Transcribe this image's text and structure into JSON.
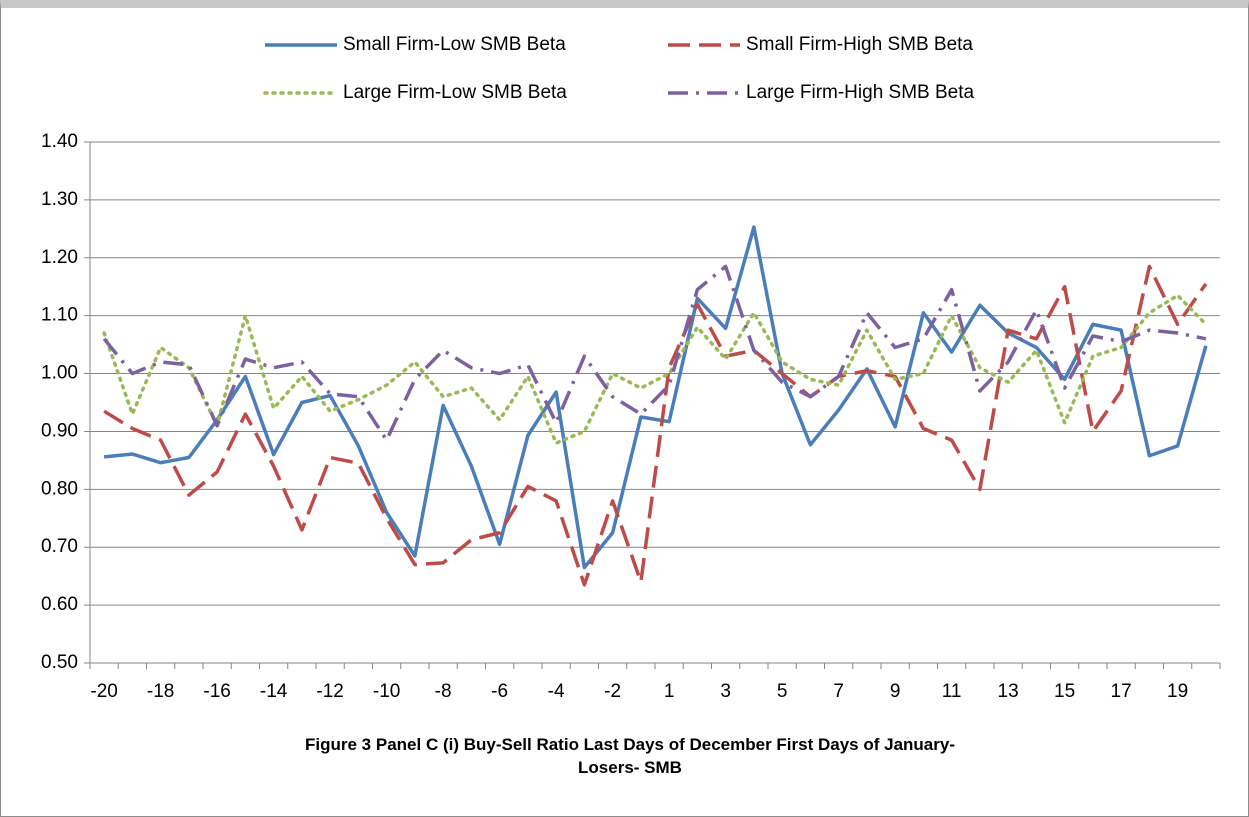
{
  "chart_data": {
    "type": "line",
    "x_label": "Figure 3 Panel C (i) Buy-Sell Ratio Last Days of December First Days of January-Losers- SMB",
    "categories": [
      "-20",
      null,
      "-18",
      null,
      "-16",
      null,
      "-14",
      null,
      "-12",
      null,
      "-10",
      null,
      "-8",
      null,
      "-6",
      null,
      "-4",
      null,
      "-2",
      null,
      "1",
      null,
      "3",
      null,
      "5",
      null,
      "7",
      null,
      "9",
      null,
      "11",
      null,
      "13",
      null,
      "15",
      null,
      "17",
      null,
      "19",
      null
    ],
    "ylim": [
      0.5,
      1.4
    ],
    "yticks": [
      {
        "value": 0.5,
        "label": "0.50"
      },
      {
        "value": 0.6,
        "label": "0.60"
      },
      {
        "value": 0.7,
        "label": "0.70"
      },
      {
        "value": 0.8,
        "label": "0.80"
      },
      {
        "value": 0.9,
        "label": "0.90"
      },
      {
        "value": 1.0,
        "label": "1.00"
      },
      {
        "value": 1.1,
        "label": "1.10"
      },
      {
        "value": 1.2,
        "label": "1.20"
      },
      {
        "value": 1.3,
        "label": "1.30"
      },
      {
        "value": 1.4,
        "label": "1.40"
      }
    ],
    "grid": true,
    "legend": "top",
    "series": [
      {
        "name": "Small Firm-Low SMB Beta",
        "color": "#4a7ebb",
        "style": "solid",
        "values": [
          0.856,
          0.861,
          0.846,
          0.855,
          0.92,
          0.995,
          0.86,
          0.95,
          0.962,
          0.875,
          0.76,
          0.685,
          0.945,
          0.84,
          0.705,
          0.893,
          0.968,
          0.665,
          0.725,
          0.925,
          0.917,
          1.13,
          1.078,
          1.253,
          1.0,
          0.877,
          0.937,
          1.008,
          0.908,
          1.105,
          1.037,
          1.118,
          1.07,
          1.045,
          0.99,
          1.085,
          1.075,
          0.858,
          0.875,
          1.048
        ]
      },
      {
        "name": "Small Firm-High SMB Beta",
        "color": "#be4b48",
        "style": "dash",
        "values": [
          0.935,
          0.905,
          0.885,
          0.79,
          0.83,
          0.93,
          0.84,
          0.73,
          0.855,
          0.845,
          0.75,
          0.67,
          0.673,
          0.713,
          0.725,
          0.805,
          0.78,
          0.635,
          0.78,
          0.64,
          1.01,
          1.12,
          1.03,
          1.04,
          1.0,
          0.96,
          0.995,
          1.005,
          0.995,
          0.905,
          0.885,
          0.8,
          1.075,
          1.06,
          1.15,
          0.9,
          0.97,
          1.185,
          1.085,
          1.155
        ]
      },
      {
        "name": "Large Firm-Low SMB Beta",
        "color": "#98b954",
        "style": "dot",
        "values": [
          1.07,
          0.93,
          1.045,
          1.01,
          0.91,
          1.1,
          0.94,
          0.995,
          0.935,
          0.955,
          0.98,
          1.02,
          0.96,
          0.975,
          0.92,
          0.995,
          0.88,
          0.9,
          1.0,
          0.975,
          1.0,
          1.08,
          1.025,
          1.105,
          1.02,
          0.99,
          0.98,
          1.075,
          0.99,
          1.0,
          1.1,
          1.01,
          0.985,
          1.04,
          0.915,
          1.03,
          1.045,
          1.105,
          1.135,
          1.085
        ]
      },
      {
        "name": "Large Firm-High SMB Beta",
        "color": "#7d60a0",
        "style": "dashdot",
        "values": [
          1.06,
          1.0,
          1.02,
          1.015,
          0.91,
          1.025,
          1.01,
          1.02,
          0.965,
          0.96,
          0.885,
          0.99,
          1.04,
          1.01,
          1.0,
          1.015,
          0.915,
          1.03,
          0.96,
          0.93,
          0.98,
          1.145,
          1.185,
          1.04,
          0.985,
          0.96,
          0.995,
          1.105,
          1.045,
          1.06,
          1.145,
          0.97,
          1.02,
          1.11,
          0.975,
          1.065,
          1.055,
          1.075,
          1.07,
          1.06
        ]
      }
    ]
  }
}
